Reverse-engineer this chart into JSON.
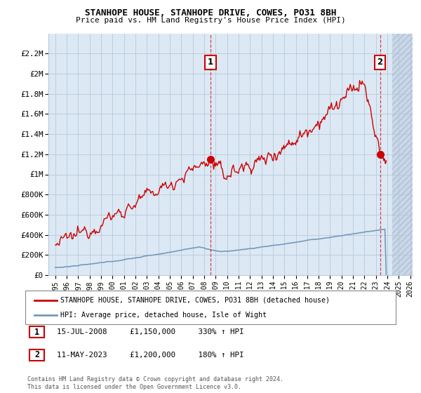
{
  "title": "STANHOPE HOUSE, STANHOPE DRIVE, COWES, PO31 8BH",
  "subtitle": "Price paid vs. HM Land Registry's House Price Index (HPI)",
  "legend_line1": "STANHOPE HOUSE, STANHOPE DRIVE, COWES, PO31 8BH (detached house)",
  "legend_line2": "HPI: Average price, detached house, Isle of Wight",
  "annotation1_label": "1",
  "annotation1_date": "15-JUL-2008",
  "annotation1_price": "£1,150,000",
  "annotation1_hpi": "330% ↑ HPI",
  "annotation2_label": "2",
  "annotation2_date": "11-MAY-2023",
  "annotation2_price": "£1,200,000",
  "annotation2_hpi": "180% ↑ HPI",
  "footer": "Contains HM Land Registry data © Crown copyright and database right 2024.\nThis data is licensed under the Open Government Licence v3.0.",
  "ylim_max": 2400000,
  "yticks": [
    0,
    200000,
    400000,
    600000,
    800000,
    1000000,
    1200000,
    1400000,
    1600000,
    1800000,
    2000000,
    2200000
  ],
  "ytick_labels": [
    "£0",
    "£200K",
    "£400K",
    "£600K",
    "£800K",
    "£1M",
    "£1.2M",
    "£1.4M",
    "£1.6M",
    "£1.8M",
    "£2M",
    "£2.2M"
  ],
  "sale1_year": 2008.54,
  "sale1_value": 1150000,
  "sale2_year": 2023.36,
  "sale2_value": 1200000,
  "red_line_color": "#cc0000",
  "blue_line_color": "#7799bb",
  "plot_bg_color": "#dce9f5",
  "hatch_bg_color": "#c8d8ea",
  "grid_color": "#b8c8d8",
  "hatch_edge_color": "#b0c0d0"
}
